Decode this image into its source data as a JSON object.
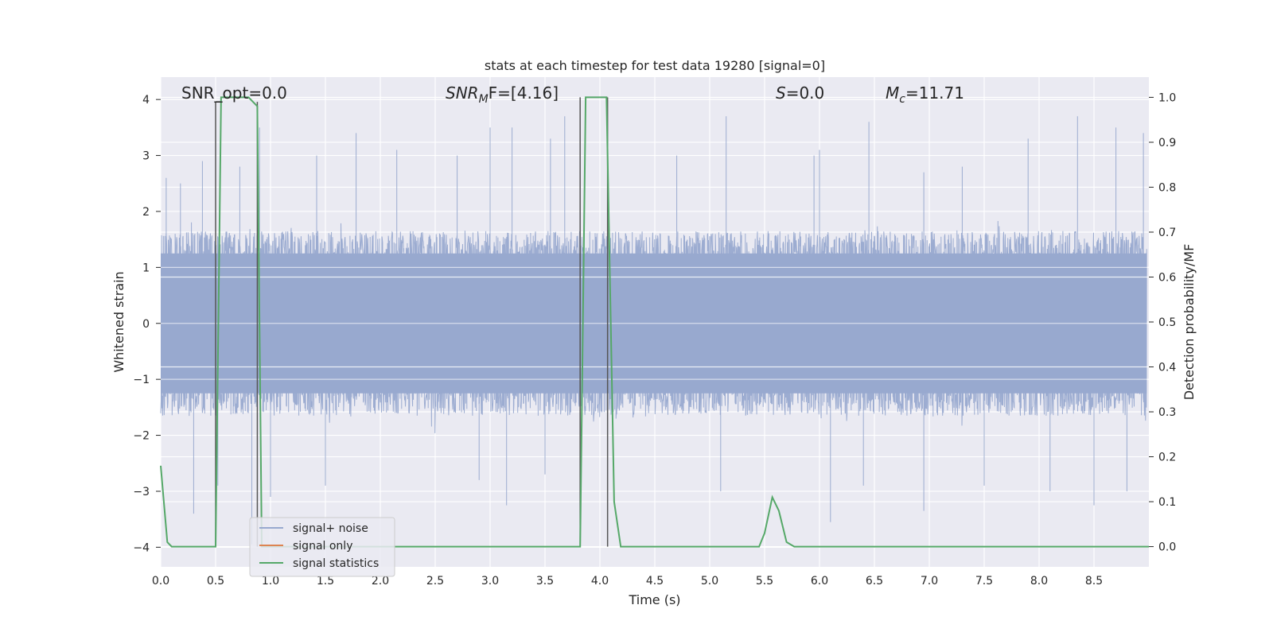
{
  "chart_data": {
    "type": "line",
    "title": "stats at each timestep for test data 19280 [signal=0]",
    "xlabel": "Time (s)",
    "ylabel": "Whitened strain",
    "y2label": "Detection probability/MF",
    "xlim": [
      0.0,
      9.0
    ],
    "ylim": [
      -4.35,
      4.4
    ],
    "y2lim": [
      -0.045,
      1.045
    ],
    "xticks": [
      "0.0",
      "0.5",
      "1.0",
      "1.5",
      "2.0",
      "2.5",
      "3.0",
      "3.5",
      "4.0",
      "4.5",
      "5.0",
      "5.5",
      "6.0",
      "6.5",
      "7.0",
      "7.5",
      "8.0",
      "8.5"
    ],
    "yticks": [
      "4",
      "3",
      "2",
      "1",
      "0",
      "−1",
      "−2",
      "−3",
      "−4"
    ],
    "y2ticks": [
      "1.0",
      "0.9",
      "0.8",
      "0.7",
      "0.6",
      "0.5",
      "0.4",
      "0.3",
      "0.2",
      "0.1",
      "0.0"
    ],
    "grid": true,
    "legend_position": "lower-left",
    "annotations": {
      "snr_opt": "SNR_opt=0.0",
      "snr_mf_name": "SNR",
      "snr_mf_sub": "M",
      "snr_mf_suffix": "F=[4.16]",
      "s_name": "S",
      "s_value": "=0.0",
      "mc_name": "M",
      "mc_sub": "c",
      "mc_value": "=11.71"
    },
    "series": [
      {
        "name": "signal+ noise",
        "color": "#98a9cf",
        "description": "whitened strain noise, roughly ±1.6 dense band with spikes up to about ±3.9",
        "dense_band": [
          -1.6,
          1.6
        ],
        "spikes": [
          {
            "t": 0.05,
            "v": 2.6
          },
          {
            "t": 0.18,
            "v": 2.5
          },
          {
            "t": 0.38,
            "v": 2.9
          },
          {
            "t": 0.72,
            "v": 2.8
          },
          {
            "t": 0.9,
            "v": 3.5
          },
          {
            "t": 1.42,
            "v": 3.0
          },
          {
            "t": 1.78,
            "v": 3.4
          },
          {
            "t": 2.15,
            "v": 3.1
          },
          {
            "t": 2.7,
            "v": 3.0
          },
          {
            "t": 3.0,
            "v": 3.5
          },
          {
            "t": 3.2,
            "v": 3.5
          },
          {
            "t": 3.55,
            "v": 3.3
          },
          {
            "t": 3.68,
            "v": 3.7
          },
          {
            "t": 4.7,
            "v": 3.0
          },
          {
            "t": 5.15,
            "v": 3.7
          },
          {
            "t": 5.95,
            "v": 3.0
          },
          {
            "t": 6.0,
            "v": 3.1
          },
          {
            "t": 6.45,
            "v": 3.6
          },
          {
            "t": 6.95,
            "v": 2.7
          },
          {
            "t": 7.3,
            "v": 2.8
          },
          {
            "t": 7.9,
            "v": 3.3
          },
          {
            "t": 8.35,
            "v": 3.7
          },
          {
            "t": 8.7,
            "v": 3.5
          },
          {
            "t": 8.95,
            "v": 3.4
          },
          {
            "t": 0.3,
            "v": -3.4
          },
          {
            "t": 0.52,
            "v": -2.9
          },
          {
            "t": 0.83,
            "v": -3.95
          },
          {
            "t": 1.0,
            "v": -3.1
          },
          {
            "t": 1.5,
            "v": -2.9
          },
          {
            "t": 2.9,
            "v": -2.8
          },
          {
            "t": 3.15,
            "v": -3.25
          },
          {
            "t": 3.5,
            "v": -2.7
          },
          {
            "t": 5.1,
            "v": -3.0
          },
          {
            "t": 6.1,
            "v": -3.55
          },
          {
            "t": 6.4,
            "v": -2.9
          },
          {
            "t": 6.95,
            "v": -3.35
          },
          {
            "t": 7.5,
            "v": -2.9
          },
          {
            "t": 8.1,
            "v": -3.0
          },
          {
            "t": 8.5,
            "v": -3.25
          },
          {
            "t": 8.8,
            "v": -3.0
          }
        ]
      },
      {
        "name": "signal only",
        "color": "#dd8452",
        "x": [
          0.0,
          9.0
        ],
        "y": [
          0.0,
          0.0
        ]
      },
      {
        "name": "signal statistics",
        "color": "#55a868",
        "axis": "right",
        "x": [
          0.0,
          0.06,
          0.1,
          0.5,
          0.55,
          0.6,
          0.8,
          0.88,
          0.92,
          3.82,
          3.87,
          3.92,
          4.06,
          4.13,
          4.19,
          5.4,
          5.45,
          5.5,
          5.57,
          5.63,
          5.7,
          5.77,
          9.0
        ],
        "y": [
          0.18,
          0.01,
          0.0,
          0.0,
          1.0,
          1.0,
          1.0,
          0.98,
          0.0,
          0.0,
          1.0,
          1.0,
          1.0,
          0.1,
          0.0,
          0.0,
          0.0,
          0.03,
          0.11,
          0.08,
          0.01,
          0.0,
          0.0
        ]
      },
      {
        "name": "window markers",
        "color": "#555555",
        "axis": "right",
        "segments": [
          {
            "x": 0.5,
            "y": [
              0.0,
              0.99
            ]
          },
          {
            "x": 0.5,
            "y2": 0.55,
            "y": 0.99
          },
          {
            "x": 0.88,
            "y": [
              0.0,
              0.99
            ]
          },
          {
            "x": 3.82,
            "y": [
              0.0,
              1.0
            ]
          },
          {
            "x": 4.07,
            "y": [
              0.0,
              1.0
            ]
          }
        ]
      }
    ]
  }
}
